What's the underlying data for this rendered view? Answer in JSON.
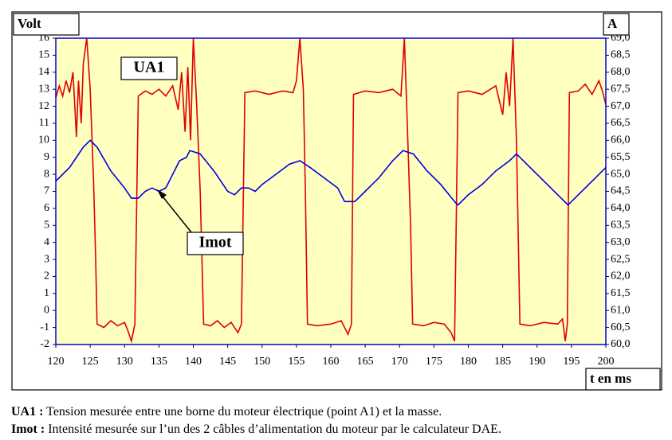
{
  "chart_data": {
    "type": "line",
    "xlabel": "t en ms",
    "ylabel": "Volt",
    "y2label": "A",
    "plot_background": "#ffffc0",
    "xlim": [
      120,
      200
    ],
    "xticks": [
      120,
      125,
      130,
      135,
      140,
      145,
      150,
      155,
      160,
      165,
      170,
      175,
      180,
      185,
      190,
      195,
      200
    ],
    "ylim": [
      -2,
      16
    ],
    "yticks": [
      -2,
      -1,
      0,
      1,
      2,
      3,
      4,
      5,
      6,
      7,
      8,
      9,
      10,
      11,
      12,
      13,
      14,
      15,
      16
    ],
    "y2lim": [
      60,
      69
    ],
    "y2ticks": [
      {
        "value": 60,
        "label": "60,0"
      },
      {
        "value": 60.5,
        "label": "60,5"
      },
      {
        "value": 61,
        "label": "61,0"
      },
      {
        "value": 61.5,
        "label": "61,5"
      },
      {
        "value": 62,
        "label": "62,0"
      },
      {
        "value": 62.5,
        "label": "62,5"
      },
      {
        "value": 63,
        "label": "63,0"
      },
      {
        "value": 63.5,
        "label": "63,5"
      },
      {
        "value": 64,
        "label": "64,0"
      },
      {
        "value": 64.5,
        "label": "64,5"
      },
      {
        "value": 65,
        "label": "65,0"
      },
      {
        "value": 65.5,
        "label": "65,5"
      },
      {
        "value": 66,
        "label": "66,0"
      },
      {
        "value": 66.5,
        "label": "66,5"
      },
      {
        "value": 67,
        "label": "67,0"
      },
      {
        "value": 67.5,
        "label": "67,5"
      },
      {
        "value": 68,
        "label": "68,0"
      },
      {
        "value": 68.5,
        "label": "68,5"
      },
      {
        "value": 69,
        "label": "69,0"
      }
    ],
    "series": [
      {
        "name": "UA1",
        "color": "#e00000",
        "x": [
          120,
          120.5,
          121,
          121.5,
          122,
          122.5,
          123,
          123.3,
          123.7,
          124,
          124.5,
          125,
          125.5,
          125.8,
          126,
          127,
          128,
          129,
          130,
          130.5,
          131,
          131.5,
          132,
          133,
          134,
          135,
          136,
          137,
          137.8,
          138.3,
          138.8,
          139.2,
          139.6,
          140,
          140.5,
          141,
          141.5,
          142.5,
          143.5,
          144.5,
          145.5,
          146.5,
          147,
          147.5,
          149,
          151,
          153,
          154.5,
          155,
          155.5,
          156,
          156.3,
          156.6,
          158,
          160,
          161.5,
          162.5,
          163,
          163.3,
          165,
          167,
          169,
          170.2,
          170.7,
          171.2,
          171.6,
          171.9,
          173.5,
          175,
          176.5,
          177.5,
          178,
          178.5,
          180,
          182,
          184,
          185,
          185.5,
          186,
          186.5,
          187,
          187.5,
          189,
          191,
          193,
          193.7,
          194.1,
          194.4,
          194.7,
          196,
          197,
          198,
          199,
          199.5,
          200
        ],
        "values": [
          12.5,
          13.2,
          12.6,
          13.5,
          12.8,
          14,
          10.2,
          13.5,
          11,
          14.5,
          16,
          13,
          7.5,
          3,
          -0.8,
          -1,
          -0.6,
          -0.9,
          -0.7,
          -1.2,
          -1.8,
          -0.8,
          12.6,
          12.9,
          12.7,
          13,
          12.6,
          13.2,
          11.8,
          14,
          10.5,
          14.3,
          10,
          16,
          12,
          7,
          -0.8,
          -0.9,
          -0.6,
          -1,
          -0.7,
          -1.3,
          -0.8,
          12.8,
          12.9,
          12.7,
          12.9,
          12.8,
          13.5,
          16,
          13,
          7,
          -0.8,
          -0.9,
          -0.8,
          -0.6,
          -1.4,
          -0.8,
          12.7,
          12.9,
          12.8,
          13,
          12.6,
          16,
          10,
          5,
          -0.8,
          -0.9,
          -0.7,
          -0.8,
          -1.3,
          -1.8,
          12.8,
          12.9,
          12.7,
          13.2,
          11.5,
          14,
          12,
          16,
          10,
          -0.8,
          -0.9,
          -0.7,
          -0.8,
          -0.5,
          -1.8,
          -0.8,
          12.8,
          12.9,
          13.3,
          12.7,
          13.5,
          12.9,
          12.1
        ]
      },
      {
        "name": "Imot",
        "color": "#0000e0",
        "axis": "y2",
        "x": [
          120,
          122,
          124,
          125,
          126,
          128,
          130,
          131,
          132,
          133,
          134,
          135,
          136,
          137,
          138,
          139,
          139.5,
          141,
          143,
          145,
          146,
          147,
          148,
          149,
          150,
          152,
          154,
          155.5,
          157,
          159,
          161,
          162,
          163.5,
          165,
          167,
          169,
          170.5,
          172,
          174,
          176,
          178,
          178.5,
          180,
          182,
          184,
          186,
          187,
          189,
          191,
          193,
          194.5,
          196,
          198,
          200
        ],
        "values": [
          64.8,
          65.2,
          65.8,
          66.0,
          65.8,
          65.1,
          64.6,
          64.3,
          64.3,
          64.5,
          64.6,
          64.5,
          64.6,
          65.0,
          65.4,
          65.5,
          65.7,
          65.6,
          65.1,
          64.5,
          64.4,
          64.6,
          64.6,
          64.5,
          64.7,
          65.0,
          65.3,
          65.4,
          65.2,
          64.9,
          64.6,
          64.2,
          64.2,
          64.5,
          64.9,
          65.4,
          65.7,
          65.6,
          65.1,
          64.7,
          64.2,
          64.1,
          64.4,
          64.7,
          65.1,
          65.4,
          65.6,
          65.2,
          64.8,
          64.4,
          64.1,
          64.4,
          64.8,
          65.2
        ]
      }
    ]
  },
  "caption": [
    {
      "term": "UA1 :",
      "text": "Tension mesurée entre une borne du moteur électrique (point A1) et la masse."
    },
    {
      "term": "Imot :",
      "text": "Intensité mesurée sur l’un des 2 câbles d’alimentation du moteur par le calculateur DAE."
    }
  ]
}
